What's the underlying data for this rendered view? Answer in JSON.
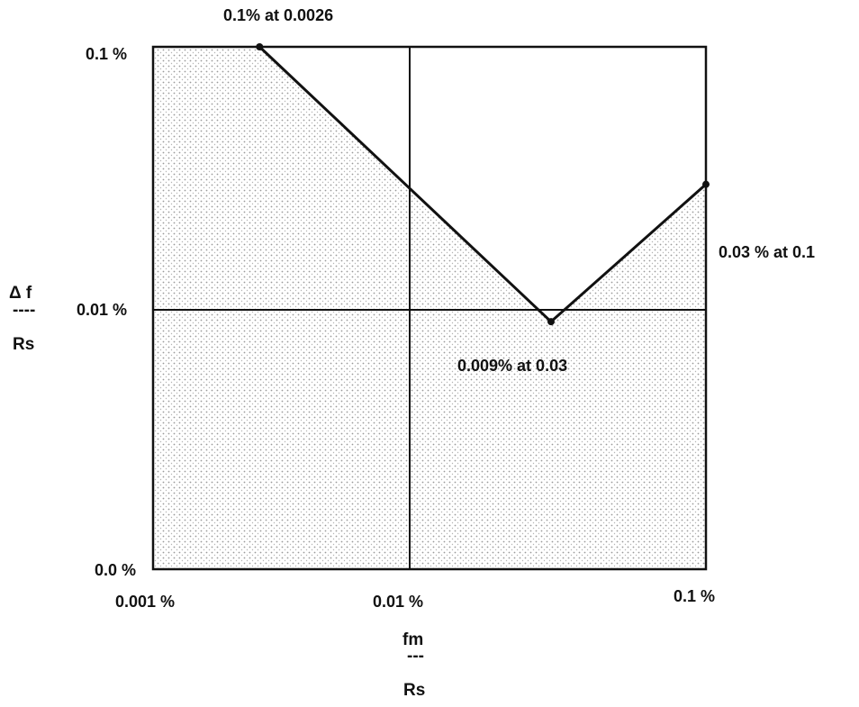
{
  "chart_data": {
    "type": "line",
    "title": "",
    "xlabel": {
      "numerator": "fm",
      "bar": "---",
      "denominator": "Rs"
    },
    "ylabel": {
      "numerator": "Δ f",
      "bar": "----",
      "denominator": "Rs"
    },
    "x_tick_labels": [
      "0.001 %",
      "0.01 %",
      "0.1 %"
    ],
    "y_tick_labels": [
      "0.0 %",
      "0.01 %",
      "0.1 %"
    ],
    "grid": true,
    "shaded_region": true,
    "series": [
      {
        "points": [
          {
            "x": "0.1% at 0.0026",
            "label": "0.1% at 0.0026"
          },
          {
            "x": "0.009% at 0.03",
            "label": "0.009% at 0.03"
          },
          {
            "x": "0.03 % at 0.1",
            "label": "0.03 % at 0.1"
          }
        ],
        "x": [
          0.0026,
          0.03,
          0.1
        ],
        "y": [
          0.1,
          0.009,
          0.03
        ]
      }
    ],
    "annotations": [
      "0.1% at 0.0026",
      "0.009% at 0.03",
      "0.03 % at 0.1"
    ],
    "colors": {
      "line": "#111111",
      "shade": "#c9c9c9",
      "frame": "#111111"
    }
  }
}
